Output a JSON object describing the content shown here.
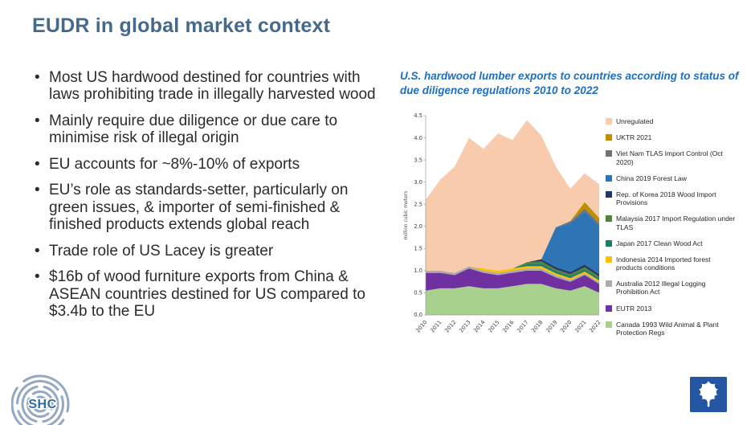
{
  "slide": {
    "title": "EUDR in global market context",
    "bullets": [
      "Most US hardwood destined for countries with laws prohibiting trade in illegally harvested wood",
      "Mainly require due diligence or due care to minimise risk of illegal origin",
      "EU accounts for ~8%-10% of exports",
      "EU’s role as standards-setter, particularly on green issues, & importer of semi-finished & finished products extends global reach",
      "Trade role of US Lacey is greater",
      "$16b of wood furniture exports from China & ASEAN countries destined for US compared to $3.4b to the EU"
    ]
  },
  "chart_data": {
    "type": "area",
    "stacked": true,
    "title": "U.S. hardwood lumber exports to countries according to status of due diligence regulations 2010 to 2022",
    "ylabel": "million cubic meters",
    "ylim": [
      0,
      4.5
    ],
    "yticks": [
      0,
      0.5,
      1,
      1.5,
      2,
      2.5,
      3,
      3.5,
      4,
      4.5
    ],
    "x": [
      "2010",
      "2011",
      "2012",
      "2013",
      "2014",
      "2015",
      "2016",
      "2017",
      "2018",
      "2019",
      "2020",
      "2021",
      "2022"
    ],
    "grid": false,
    "legend_position": "right",
    "series": [
      {
        "name": "Canada 1993 Wild Animal & Plant Protection Regs",
        "color": "#A9D18E",
        "values": [
          0.55,
          0.6,
          0.6,
          0.65,
          0.6,
          0.6,
          0.65,
          0.7,
          0.7,
          0.6,
          0.55,
          0.65,
          0.5
        ]
      },
      {
        "name": "EUTR 2013",
        "color": "#7030A0",
        "values": [
          0.4,
          0.35,
          0.3,
          0.4,
          0.35,
          0.3,
          0.3,
          0.3,
          0.3,
          0.25,
          0.2,
          0.25,
          0.2
        ]
      },
      {
        "name": "Australia 2012 Illegal Logging Prohibition Act",
        "color": "#AEAAAA",
        "values": [
          0.05,
          0.05,
          0.05,
          0.05,
          0.05,
          0.05,
          0.05,
          0.05,
          0.05,
          0.05,
          0.04,
          0.04,
          0.04
        ]
      },
      {
        "name": "Indonesia 2014 Imported forest products conditions",
        "color": "#FFC000",
        "values": [
          0,
          0,
          0,
          0,
          0.05,
          0.05,
          0.05,
          0.05,
          0.05,
          0.04,
          0.04,
          0.04,
          0.04
        ]
      },
      {
        "name": "Japan 2017 Clean Wood Act",
        "color": "#1E7C6B",
        "values": [
          0,
          0,
          0,
          0,
          0,
          0,
          0,
          0.05,
          0.06,
          0.05,
          0.05,
          0.05,
          0.05
        ]
      },
      {
        "name": "Malaysia 2017 Import Regulation under TLAS",
        "color": "#538135",
        "values": [
          0,
          0,
          0,
          0,
          0,
          0,
          0,
          0.04,
          0.05,
          0.04,
          0.04,
          0.05,
          0.04
        ]
      },
      {
        "name": "Rep. of Korea 2018 Wood Import Provisions",
        "color": "#203864",
        "values": [
          0,
          0,
          0,
          0,
          0,
          0,
          0,
          0,
          0.05,
          0.05,
          0.05,
          0.06,
          0.05
        ]
      },
      {
        "name": "China 2019 Forest Law",
        "color": "#2E75B6",
        "values": [
          0,
          0,
          0,
          0,
          0,
          0,
          0,
          0,
          0,
          0.9,
          1.1,
          1.2,
          1.1
        ]
      },
      {
        "name": "Viet Nam TLAS Import Control (Oct 2020)",
        "color": "#767171",
        "values": [
          0,
          0,
          0,
          0,
          0,
          0,
          0,
          0,
          0,
          0,
          0.05,
          0.06,
          0.05
        ]
      },
      {
        "name": "UKTR 2021",
        "color": "#BF8F00",
        "values": [
          0,
          0,
          0,
          0,
          0,
          0,
          0,
          0,
          0,
          0,
          0,
          0.15,
          0.12
        ]
      },
      {
        "name": "Unregulated",
        "color": "#F8CBAD",
        "values": [
          1.6,
          2.05,
          2.4,
          2.9,
          2.7,
          3.1,
          2.9,
          3.21,
          2.79,
          1.37,
          0.73,
          0.65,
          0.76
        ]
      }
    ]
  },
  "logos": {
    "shc_label": "SHC",
    "ahec_color": "#2456A4"
  }
}
